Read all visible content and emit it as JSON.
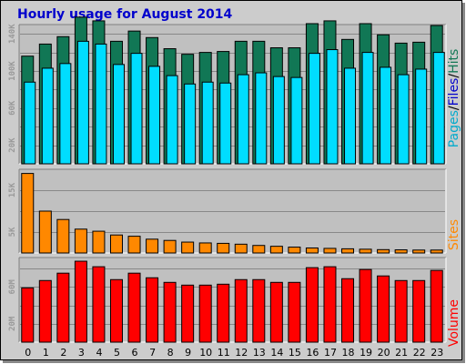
{
  "chart_data": {
    "type": "bar",
    "title": "Hourly usage for August 2014",
    "categories": [
      "0",
      "1",
      "2",
      "3",
      "4",
      "5",
      "6",
      "7",
      "8",
      "9",
      "10",
      "11",
      "12",
      "13",
      "14",
      "15",
      "16",
      "17",
      "18",
      "19",
      "20",
      "21",
      "22",
      "23"
    ],
    "colors": {
      "hits": "#117755",
      "files": "#00ddff",
      "sites": "#ff8800",
      "volume": "#ff0000",
      "pages": "#00aacc",
      "title": "#0000cc",
      "panel_bg": "#c0c0c0",
      "frame_bg": "#cccccc"
    },
    "panels": [
      {
        "id": "hits_files",
        "label_parts": [
          {
            "text": "Pages",
            "color": "#00aacc"
          },
          {
            "text": "/",
            "color": "#000000"
          },
          {
            "text": "Files",
            "color": "#0000cc"
          },
          {
            "text": "/",
            "color": "#000000"
          },
          {
            "text": "Hits",
            "color": "#117755"
          }
        ],
        "ylim": [
          0,
          150000
        ],
        "yticks": [
          {
            "value": 20000,
            "label": "20K"
          },
          {
            "value": 60000,
            "label": "60K"
          },
          {
            "value": 100000,
            "label": "100K"
          },
          {
            "value": 140000,
            "label": "140K"
          }
        ],
        "series": [
          {
            "name": "Hits",
            "color": "#117755",
            "values": [
              116000,
              129000,
              137000,
              158000,
              154000,
              132000,
              143000,
              136000,
              124000,
              118000,
              120000,
              121000,
              132000,
              132000,
              125000,
              125000,
              151000,
              154000,
              134000,
              151000,
              139000,
              130000,
              131000,
              149000
            ]
          },
          {
            "name": "Files",
            "color": "#00ddff",
            "values": [
              88000,
              103000,
              108000,
              132000,
              129000,
              107000,
              119000,
              105000,
              95000,
              86000,
              88000,
              87000,
              96000,
              98000,
              94000,
              93000,
              119000,
              123000,
              103000,
              120000,
              104000,
              96000,
              102000,
              120000
            ]
          }
        ]
      },
      {
        "id": "sites",
        "label_parts": [
          {
            "text": "Sites",
            "color": "#ff8800"
          }
        ],
        "ylim": [
          0,
          20000
        ],
        "yticks": [
          {
            "value": 5000,
            "label": "5K"
          },
          {
            "value": 15000,
            "label": "15K"
          }
        ],
        "series": [
          {
            "name": "Sites",
            "color": "#ff8800",
            "values": [
              19000,
              10000,
              8000,
              5700,
              5200,
              4300,
              4000,
              3300,
              3000,
              2600,
              2400,
              2300,
              2100,
              1800,
              1600,
              1400,
              1200,
              1100,
              1000,
              900,
              800,
              750,
              700,
              700
            ]
          }
        ]
      },
      {
        "id": "volume",
        "label_parts": [
          {
            "text": "Volume",
            "color": "#ff0000"
          }
        ],
        "ylim": [
          0,
          92000
        ],
        "yticks": [
          {
            "value": 20000,
            "label": "20M"
          },
          {
            "value": 60000,
            "label": "60M"
          }
        ],
        "series": [
          {
            "name": "Volume",
            "color": "#ff0000",
            "values": [
              59000,
              67000,
              75000,
              88000,
              82000,
              68000,
              75000,
              70000,
              65000,
              62000,
              62000,
              63000,
              68000,
              68000,
              65000,
              65000,
              81000,
              82000,
              69000,
              79000,
              72000,
              67000,
              67000,
              78000
            ]
          }
        ]
      }
    ]
  }
}
